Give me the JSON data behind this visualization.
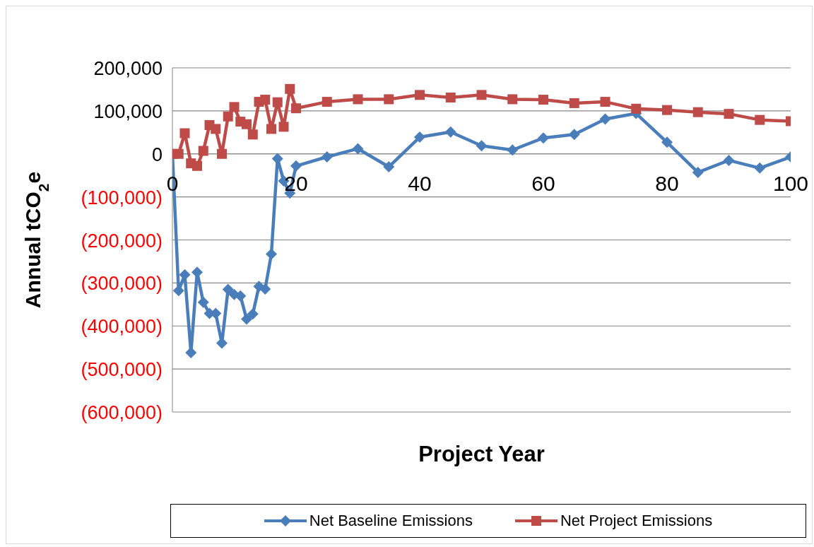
{
  "chart_data": {
    "type": "line",
    "xlabel": "Project Year",
    "ylabel": "Annual tCO$_{2}$e",
    "xlim": [
      0,
      100
    ],
    "xticks": [
      0,
      20,
      40,
      60,
      80,
      100
    ],
    "ylim": [
      -600000,
      200000
    ],
    "yticks": [
      {
        "value": -600000,
        "label": "(600,000)"
      },
      {
        "value": -500000,
        "label": "(500,000)"
      },
      {
        "value": -400000,
        "label": "(400,000)"
      },
      {
        "value": -300000,
        "label": "(300,000)"
      },
      {
        "value": -200000,
        "label": "(200,000)"
      },
      {
        "value": -100000,
        "label": "(100,000)"
      },
      {
        "value": 0,
        "label": "0"
      },
      {
        "value": 100000,
        "label": "100,000"
      },
      {
        "value": 200000,
        "label": "200,000"
      }
    ],
    "grid": "y",
    "legend": "bottom",
    "x": [
      0,
      1,
      2,
      3,
      4,
      5,
      6,
      7,
      8,
      9,
      10,
      11,
      12,
      13,
      14,
      15,
      16,
      17,
      18,
      19,
      20,
      25,
      30,
      35,
      40,
      45,
      50,
      55,
      60,
      65,
      70,
      75,
      80,
      85,
      90,
      95,
      100
    ],
    "series": [
      {
        "name": "Net Baseline Emissions",
        "color": "#4a7ebb",
        "marker": "diamond",
        "values": [
          0,
          -318000,
          -281000,
          -462000,
          -275000,
          -345000,
          -371000,
          -371000,
          -440000,
          -315000,
          -327000,
          -330000,
          -384000,
          -372000,
          -308000,
          -314000,
          -233000,
          -11000,
          -63000,
          -91000,
          -28000,
          -7000,
          12000,
          -30000,
          39000,
          51000,
          19000,
          9000,
          37000,
          45000,
          81000,
          94000,
          27000,
          -43000,
          -15000,
          -33000,
          -7000
        ]
      },
      {
        "name": "Net Project Emissions",
        "color": "#be4b48",
        "marker": "square",
        "values": [
          0,
          0,
          48000,
          -22000,
          -28000,
          7000,
          67000,
          58000,
          0,
          87000,
          109000,
          75000,
          69000,
          45000,
          121000,
          126000,
          58000,
          120000,
          63000,
          151000,
          106000,
          121000,
          127000,
          127000,
          137000,
          131000,
          137000,
          127000,
          126000,
          118000,
          121000,
          105000,
          102000,
          97000,
          93000,
          79000,
          76000
        ]
      }
    ]
  }
}
